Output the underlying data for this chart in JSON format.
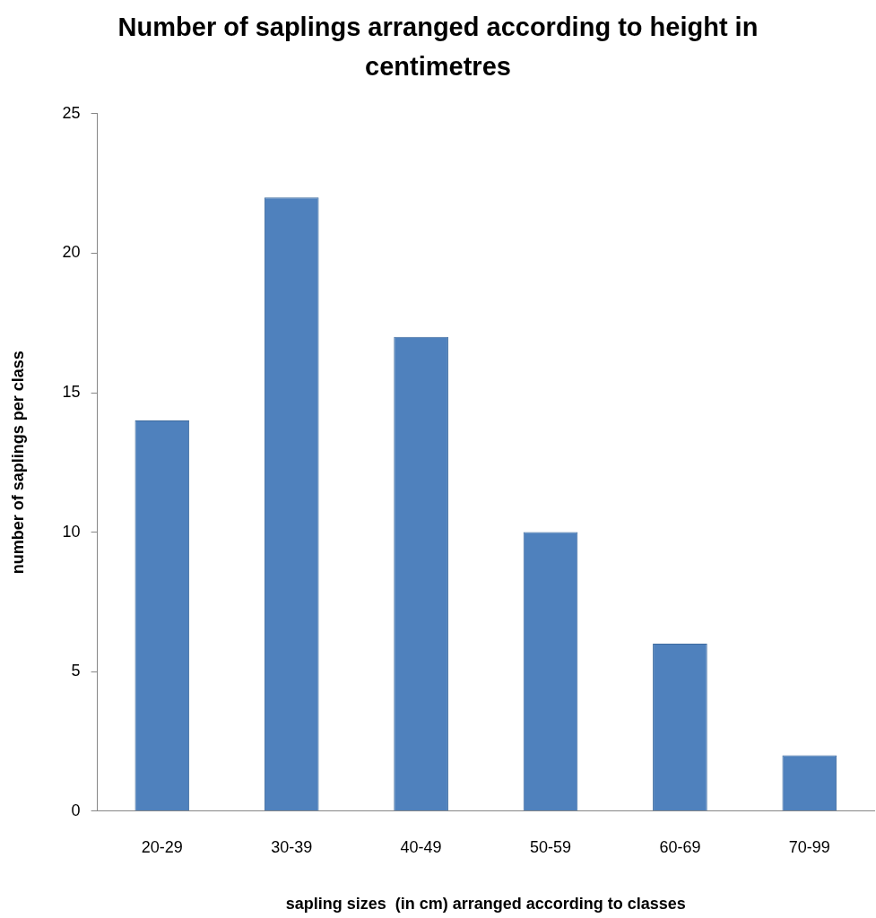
{
  "chart_data": {
    "type": "bar",
    "title": "Number of saplings arranged according to height in centimetres",
    "xlabel": "sapling sizes  (in cm) arranged according to classes",
    "ylabel": "number of saplings per class",
    "categories": [
      "20-29",
      "30-39",
      "40-49",
      "50-59",
      "60-69",
      "70-99"
    ],
    "values": [
      14,
      22,
      17,
      10,
      6,
      2
    ],
    "color": "#4f81bd",
    "ylim": [
      0,
      25
    ],
    "yticks": [
      0,
      5,
      10,
      15,
      20,
      25
    ],
    "grid": false
  }
}
